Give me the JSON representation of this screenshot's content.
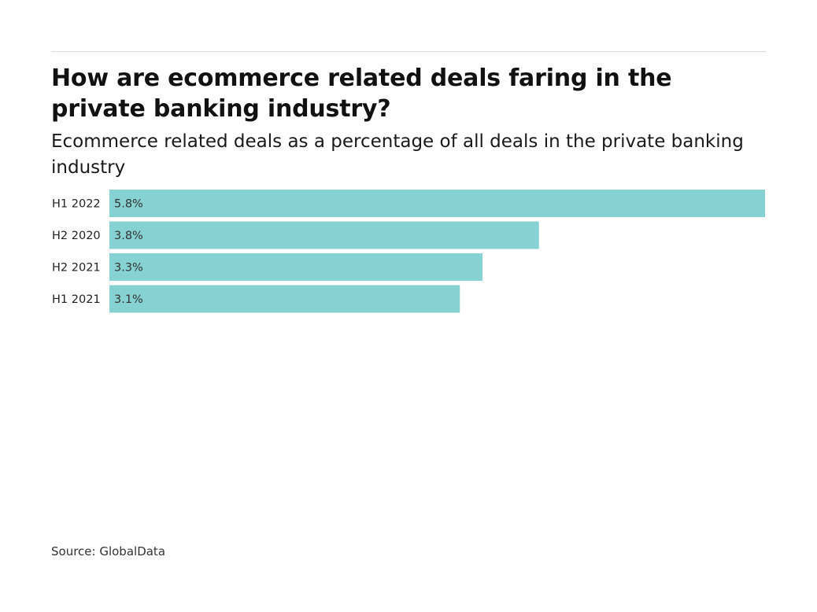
{
  "chart_data": {
    "type": "bar",
    "orientation": "horizontal",
    "title": "How are ecommerce related deals faring in the private banking industry?",
    "subtitle": "Ecommerce related deals as a percentage of all deals in the private banking industry",
    "categories": [
      "H1 2022",
      "H2 2020",
      "H2 2021",
      "H1 2021"
    ],
    "values": [
      5.8,
      3.8,
      3.3,
      3.1
    ],
    "value_labels": [
      "5.8%",
      "3.8%",
      "3.3%",
      "3.1%"
    ],
    "unit": "%",
    "xlabel": "",
    "ylabel": "",
    "xlim": [
      0,
      5.8
    ],
    "grid": false,
    "legend": "none",
    "bar_color": "#86d1d2",
    "source": "Source: GlobalData"
  }
}
